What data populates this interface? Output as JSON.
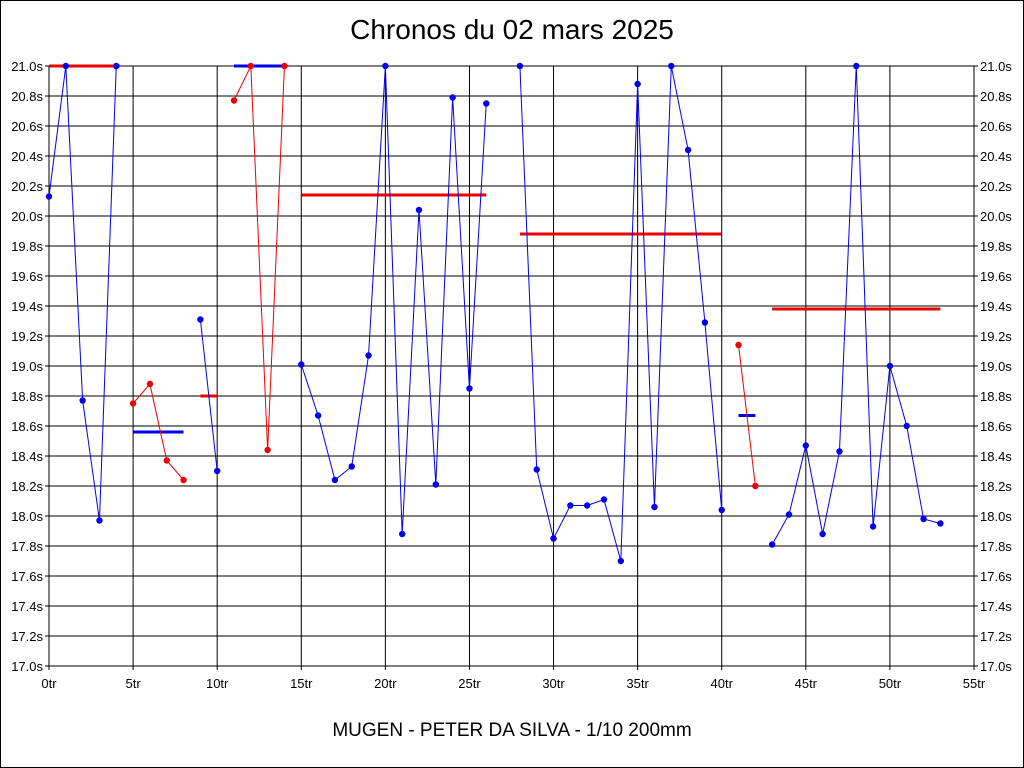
{
  "chart_data": {
    "type": "line",
    "title": "Chronos du 02 mars 2025",
    "footer": "MUGEN - PETER DA SILVA - 1/10 200mm",
    "xlim": [
      0,
      55
    ],
    "ylim": [
      17.0,
      21.0
    ],
    "x_ticks": [
      {
        "value": 0,
        "label": "0tr"
      },
      {
        "value": 5,
        "label": "5tr"
      },
      {
        "value": 10,
        "label": "10tr"
      },
      {
        "value": 15,
        "label": "15tr"
      },
      {
        "value": 20,
        "label": "20tr"
      },
      {
        "value": 25,
        "label": "25tr"
      },
      {
        "value": 30,
        "label": "30tr"
      },
      {
        "value": 35,
        "label": "35tr"
      },
      {
        "value": 40,
        "label": "40tr"
      },
      {
        "value": 45,
        "label": "45tr"
      },
      {
        "value": 50,
        "label": "50tr"
      },
      {
        "value": 55,
        "label": "55tr"
      }
    ],
    "y_ticks": [
      {
        "value": 17.0,
        "label": "17.0s"
      },
      {
        "value": 17.2,
        "label": "17.2s"
      },
      {
        "value": 17.4,
        "label": "17.4s"
      },
      {
        "value": 17.6,
        "label": "17.6s"
      },
      {
        "value": 17.8,
        "label": "17.8s"
      },
      {
        "value": 18.0,
        "label": "18.0s"
      },
      {
        "value": 18.2,
        "label": "18.2s"
      },
      {
        "value": 18.4,
        "label": "18.4s"
      },
      {
        "value": 18.6,
        "label": "18.6s"
      },
      {
        "value": 18.8,
        "label": "18.8s"
      },
      {
        "value": 19.0,
        "label": "19.0s"
      },
      {
        "value": 19.2,
        "label": "19.2s"
      },
      {
        "value": 19.4,
        "label": "19.4s"
      },
      {
        "value": 19.6,
        "label": "19.6s"
      },
      {
        "value": 19.8,
        "label": "19.8s"
      },
      {
        "value": 20.0,
        "label": "20.0s"
      },
      {
        "value": 20.2,
        "label": "20.2s"
      },
      {
        "value": 20.4,
        "label": "20.4s"
      },
      {
        "value": 20.6,
        "label": "20.6s"
      },
      {
        "value": 20.8,
        "label": "20.8s"
      },
      {
        "value": 21.0,
        "label": "21.0s"
      }
    ],
    "grid": true,
    "colors": {
      "blue": "#0000ee",
      "red": "#ee0000",
      "grid": "#000000"
    },
    "series": [
      {
        "color": "blue",
        "points": [
          [
            0,
            20.13
          ],
          [
            1,
            21.0
          ],
          [
            2,
            18.77
          ],
          [
            3,
            17.97
          ],
          [
            4,
            21.0
          ]
        ]
      },
      {
        "color": "red",
        "points": [
          [
            5,
            18.75
          ],
          [
            6,
            18.88
          ],
          [
            7,
            18.37
          ],
          [
            8,
            18.24
          ]
        ]
      },
      {
        "color": "blue",
        "points": [
          [
            9,
            19.31
          ],
          [
            10,
            18.3
          ]
        ]
      },
      {
        "color": "red",
        "points": [
          [
            11,
            20.77
          ],
          [
            12,
            21.0
          ],
          [
            13,
            18.44
          ],
          [
            14,
            21.0
          ]
        ]
      },
      {
        "color": "blue",
        "points": [
          [
            15,
            19.01
          ],
          [
            16,
            18.67
          ],
          [
            17,
            18.24
          ],
          [
            18,
            18.33
          ],
          [
            19,
            19.07
          ],
          [
            20,
            21.0
          ],
          [
            21,
            17.88
          ],
          [
            22,
            20.04
          ],
          [
            23,
            18.21
          ],
          [
            24,
            20.79
          ],
          [
            25,
            18.85
          ],
          [
            26,
            20.75
          ]
        ]
      },
      {
        "color": "blue",
        "points": [
          [
            28,
            21.0
          ],
          [
            29,
            18.31
          ],
          [
            30,
            17.85
          ],
          [
            31,
            18.07
          ],
          [
            32,
            18.07
          ],
          [
            33,
            18.11
          ],
          [
            34,
            17.7
          ],
          [
            35,
            20.88
          ],
          [
            36,
            18.06
          ],
          [
            37,
            21.0
          ],
          [
            38,
            20.44
          ],
          [
            39,
            19.29
          ],
          [
            40,
            18.04
          ]
        ]
      },
      {
        "color": "red",
        "points": [
          [
            41,
            19.14
          ],
          [
            42,
            18.2
          ]
        ]
      },
      {
        "color": "blue",
        "points": [
          [
            43,
            17.81
          ],
          [
            44,
            18.01
          ],
          [
            45,
            18.47
          ],
          [
            46,
            17.88
          ],
          [
            47,
            18.43
          ],
          [
            48,
            21.0
          ],
          [
            49,
            17.93
          ],
          [
            50,
            19.0
          ],
          [
            51,
            18.6
          ],
          [
            52,
            17.98
          ],
          [
            53,
            17.95
          ]
        ]
      }
    ],
    "average_lines": [
      {
        "color": "red",
        "x1": 0,
        "x2": 4.2,
        "y": 21.0
      },
      {
        "color": "blue",
        "x1": 5,
        "x2": 8,
        "y": 18.56
      },
      {
        "color": "red",
        "x1": 9,
        "x2": 10,
        "y": 18.8
      },
      {
        "color": "blue",
        "x1": 11,
        "x2": 14,
        "y": 21.0
      },
      {
        "color": "red",
        "x1": 15,
        "x2": 26,
        "y": 20.14
      },
      {
        "color": "red",
        "x1": 28,
        "x2": 40,
        "y": 19.88
      },
      {
        "color": "blue",
        "x1": 41,
        "x2": 42,
        "y": 18.67
      },
      {
        "color": "red",
        "x1": 43,
        "x2": 53,
        "y": 19.38
      }
    ]
  }
}
